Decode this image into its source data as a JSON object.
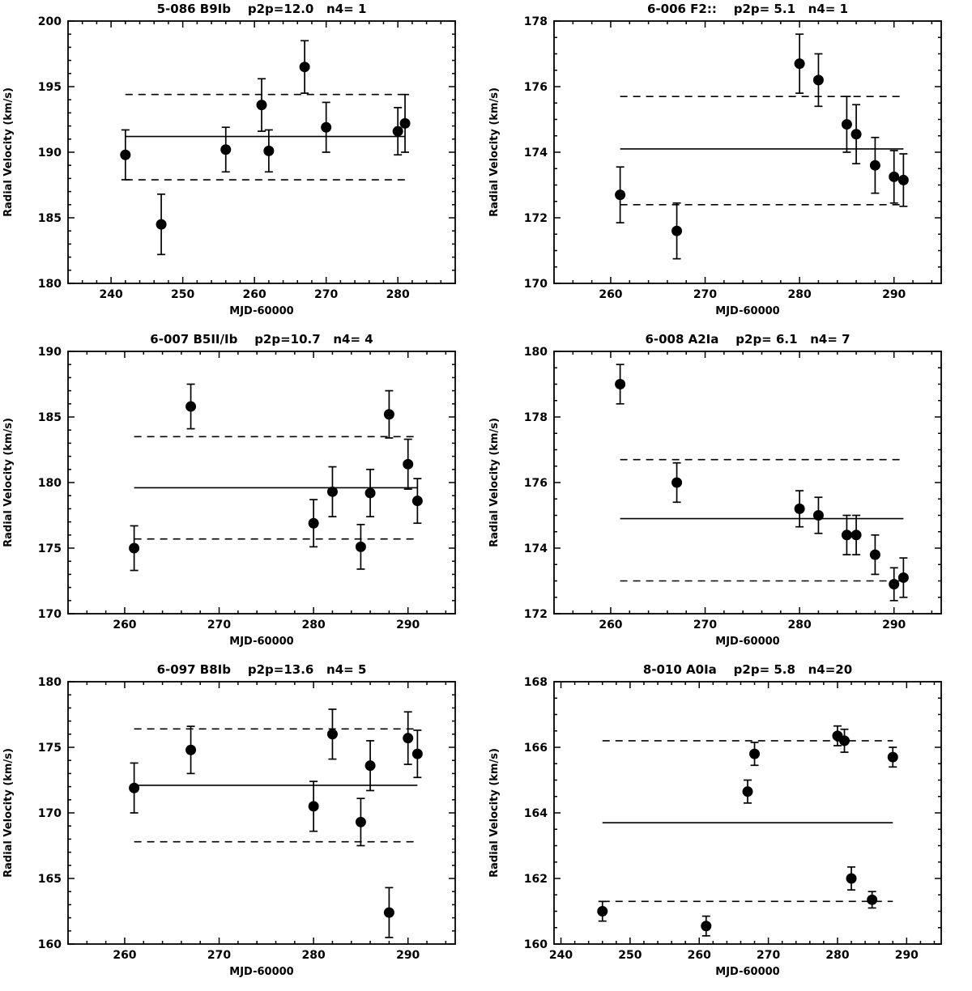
{
  "figure": {
    "type": "multi-panel-radial-velocity-curves",
    "panel_count": 6,
    "shared_xlabel": "MJD-60000",
    "shared_ylabel": "Radial Velocity (km/s)",
    "colors": {
      "foreground": "#000000",
      "background": "#ffffff"
    }
  },
  "chart_data": [
    {
      "type": "scatter",
      "title": "5-086 B9Ib    p2p=12.0   n4= 1",
      "star_id": "5-086",
      "spectral_type": "B9Ib",
      "p2p": 12.0,
      "n4": 1,
      "xlabel": "MJD-60000",
      "ylabel": "Radial Velocity (km/s)",
      "xlim": [
        234,
        288
      ],
      "ylim": [
        180,
        200
      ],
      "xticks": [
        240,
        250,
        260,
        270,
        280
      ],
      "yticks": [
        180,
        185,
        190,
        195,
        200
      ],
      "xminor": 5,
      "yminor": 5,
      "mean_line": 191.2,
      "upper_dashed": 194.4,
      "lower_dashed": 187.9,
      "points_format": [
        "mjd_minus_60000",
        "rv_km_s",
        "rv_error_km_s"
      ],
      "points": [
        [
          242,
          189.8,
          1.9
        ],
        [
          247,
          184.5,
          2.3
        ],
        [
          256,
          190.2,
          1.7
        ],
        [
          261,
          193.6,
          2.0
        ],
        [
          262,
          190.1,
          1.6
        ],
        [
          267,
          196.5,
          2.0
        ],
        [
          270,
          191.9,
          1.9
        ],
        [
          280,
          191.6,
          1.8
        ],
        [
          281,
          192.2,
          2.2
        ]
      ]
    },
    {
      "type": "scatter",
      "title": "6-006 F2::    p2p= 5.1   n4= 1",
      "star_id": "6-006",
      "spectral_type": "F2::",
      "p2p": 5.1,
      "n4": 1,
      "xlabel": "MJD-60000",
      "ylabel": "Radial Velocity (km/s)",
      "xlim": [
        254,
        295
      ],
      "ylim": [
        170,
        178
      ],
      "xticks": [
        260,
        270,
        280,
        290
      ],
      "yticks": [
        170,
        172,
        174,
        176,
        178
      ],
      "xminor": 5,
      "yminor": 4,
      "mean_line": 174.1,
      "upper_dashed": 175.7,
      "lower_dashed": 172.4,
      "points_format": [
        "mjd_minus_60000",
        "rv_km_s",
        "rv_error_km_s"
      ],
      "points": [
        [
          261,
          172.7,
          0.85
        ],
        [
          267,
          171.6,
          0.85
        ],
        [
          280,
          176.7,
          0.9
        ],
        [
          282,
          176.2,
          0.8
        ],
        [
          285,
          174.85,
          0.85
        ],
        [
          286,
          174.55,
          0.9
        ],
        [
          288,
          173.6,
          0.85
        ],
        [
          290,
          173.25,
          0.8
        ],
        [
          291,
          173.15,
          0.8
        ]
      ]
    },
    {
      "type": "scatter",
      "title": "6-007 B5II/Ib    p2p=10.7   n4= 4",
      "star_id": "6-007",
      "spectral_type": "B5II/Ib",
      "p2p": 10.7,
      "n4": 4,
      "xlabel": "MJD-60000",
      "ylabel": "Radial Velocity (km/s)",
      "xlim": [
        254,
        295
      ],
      "ylim": [
        170,
        190
      ],
      "xticks": [
        260,
        270,
        280,
        290
      ],
      "yticks": [
        170,
        175,
        180,
        185,
        190
      ],
      "xminor": 5,
      "yminor": 5,
      "mean_line": 179.6,
      "upper_dashed": 183.5,
      "lower_dashed": 175.7,
      "points_format": [
        "mjd_minus_60000",
        "rv_km_s",
        "rv_error_km_s"
      ],
      "points": [
        [
          261,
          175.0,
          1.7
        ],
        [
          267,
          185.8,
          1.7
        ],
        [
          280,
          176.9,
          1.8
        ],
        [
          282,
          179.3,
          1.9
        ],
        [
          285,
          175.1,
          1.7
        ],
        [
          286,
          179.2,
          1.8
        ],
        [
          288,
          185.2,
          1.8
        ],
        [
          290,
          181.4,
          1.9
        ],
        [
          291,
          178.6,
          1.7
        ]
      ]
    },
    {
      "type": "scatter",
      "title": "6-008 A2Ia    p2p= 6.1   n4= 7",
      "star_id": "6-008",
      "spectral_type": "A2Ia",
      "p2p": 6.1,
      "n4": 7,
      "xlabel": "MJD-60000",
      "ylabel": "Radial Velocity (km/s)",
      "xlim": [
        254,
        295
      ],
      "ylim": [
        172,
        180
      ],
      "xticks": [
        260,
        270,
        280,
        290
      ],
      "yticks": [
        172,
        174,
        176,
        178,
        180
      ],
      "xminor": 5,
      "yminor": 4,
      "mean_line": 174.9,
      "upper_dashed": 176.7,
      "lower_dashed": 173.0,
      "points_format": [
        "mjd_minus_60000",
        "rv_km_s",
        "rv_error_km_s"
      ],
      "points": [
        [
          261,
          179.0,
          0.6
        ],
        [
          267,
          176.0,
          0.6
        ],
        [
          280,
          175.2,
          0.55
        ],
        [
          282,
          175.0,
          0.55
        ],
        [
          285,
          174.4,
          0.6
        ],
        [
          286,
          174.4,
          0.6
        ],
        [
          288,
          173.8,
          0.6
        ],
        [
          290,
          172.9,
          0.5
        ],
        [
          291,
          173.1,
          0.6
        ]
      ]
    },
    {
      "type": "scatter",
      "title": "6-097 B8Ib    p2p=13.6   n4= 5",
      "star_id": "6-097",
      "spectral_type": "B8Ib",
      "p2p": 13.6,
      "n4": 5,
      "xlabel": "MJD-60000",
      "ylabel": "Radial Velocity (km/s)",
      "xlim": [
        254,
        295
      ],
      "ylim": [
        160,
        180
      ],
      "xticks": [
        260,
        270,
        280,
        290
      ],
      "yticks": [
        160,
        165,
        170,
        175,
        180
      ],
      "xminor": 5,
      "yminor": 5,
      "mean_line": 172.1,
      "upper_dashed": 176.4,
      "lower_dashed": 167.8,
      "points_format": [
        "mjd_minus_60000",
        "rv_km_s",
        "rv_error_km_s"
      ],
      "points": [
        [
          261,
          171.9,
          1.9
        ],
        [
          267,
          174.8,
          1.8
        ],
        [
          280,
          170.5,
          1.9
        ],
        [
          282,
          176.0,
          1.9
        ],
        [
          285,
          169.3,
          1.8
        ],
        [
          286,
          173.6,
          1.9
        ],
        [
          288,
          162.4,
          1.9
        ],
        [
          290,
          175.7,
          2.0
        ],
        [
          291,
          174.5,
          1.8
        ]
      ]
    },
    {
      "type": "scatter",
      "title": "8-010 A0Ia    p2p= 5.8   n4=20",
      "star_id": "8-010",
      "spectral_type": "A0Ia",
      "p2p": 5.8,
      "n4": 20,
      "xlabel": "MJD-60000",
      "ylabel": "Radial Velocity (km/s)",
      "xlim": [
        239,
        295
      ],
      "ylim": [
        160,
        168
      ],
      "xticks": [
        240,
        250,
        260,
        270,
        280,
        290
      ],
      "yticks": [
        160,
        162,
        164,
        166,
        168
      ],
      "xminor": 5,
      "yminor": 4,
      "mean_line": 163.7,
      "upper_dashed": 166.2,
      "lower_dashed": 161.3,
      "points_format": [
        "mjd_minus_60000",
        "rv_km_s",
        "rv_error_km_s"
      ],
      "points": [
        [
          246,
          161.0,
          0.3
        ],
        [
          261,
          160.55,
          0.3
        ],
        [
          267,
          164.65,
          0.35
        ],
        [
          268,
          165.8,
          0.35
        ],
        [
          280,
          166.35,
          0.3
        ],
        [
          281,
          166.2,
          0.35
        ],
        [
          282,
          162.0,
          0.35
        ],
        [
          285,
          161.35,
          0.25
        ],
        [
          288,
          165.7,
          0.3
        ]
      ]
    }
  ]
}
